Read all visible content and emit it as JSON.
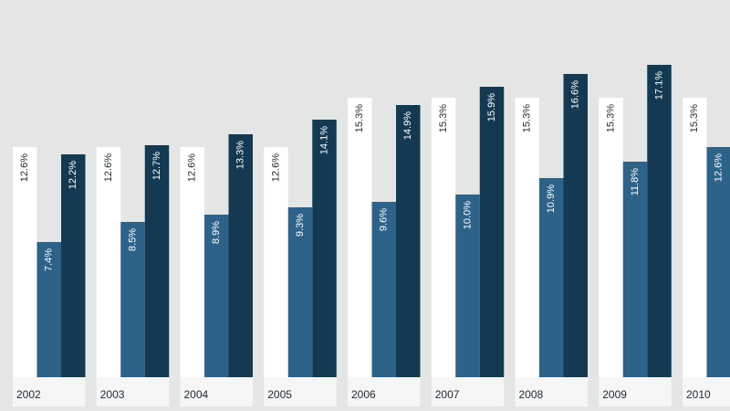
{
  "chart_data": {
    "type": "bar",
    "title": "",
    "xlabel": "",
    "ylabel": "",
    "ylim": [
      0,
      19.5
    ],
    "grid": false,
    "categories": [
      "2002",
      "2003",
      "2004",
      "2005",
      "2006",
      "2007",
      "2008",
      "2009",
      "2010"
    ],
    "series": [
      {
        "values": [
          12.6,
          12.6,
          12.6,
          12.6,
          15.3,
          15.3,
          15.3,
          15.3,
          15.3
        ],
        "labels": [
          "12.6%",
          "12.6%",
          "12.6%",
          "12.6%",
          "15.3%",
          "15.3%",
          "15.3%",
          "15.3%",
          "15.3%"
        ],
        "color": "#ffffff"
      },
      {
        "values": [
          7.4,
          8.5,
          8.9,
          9.3,
          9.6,
          10.0,
          10.9,
          11.8,
          12.6
        ],
        "labels": [
          "7.4%",
          "8.5%",
          "8.9%",
          "9.3%",
          "9.6%",
          "10.0%",
          "10.9%",
          "11.8%",
          "12.6%"
        ],
        "color": "#2d6289"
      },
      {
        "values": [
          12.2,
          12.7,
          13.3,
          14.1,
          14.9,
          15.9,
          16.6,
          17.1,
          null
        ],
        "labels": [
          "12.2%",
          "12.7%",
          "13.3%",
          "14.1%",
          "14.9%",
          "15.9%",
          "16.6%",
          "17.1%",
          ""
        ],
        "color": "#133a52"
      }
    ],
    "colors": {
      "background": "#e3e6e5",
      "category_strip": "#f5f6f5",
      "label_on_white": "#1e2a33",
      "label_on_dark": "#ffffff"
    }
  }
}
